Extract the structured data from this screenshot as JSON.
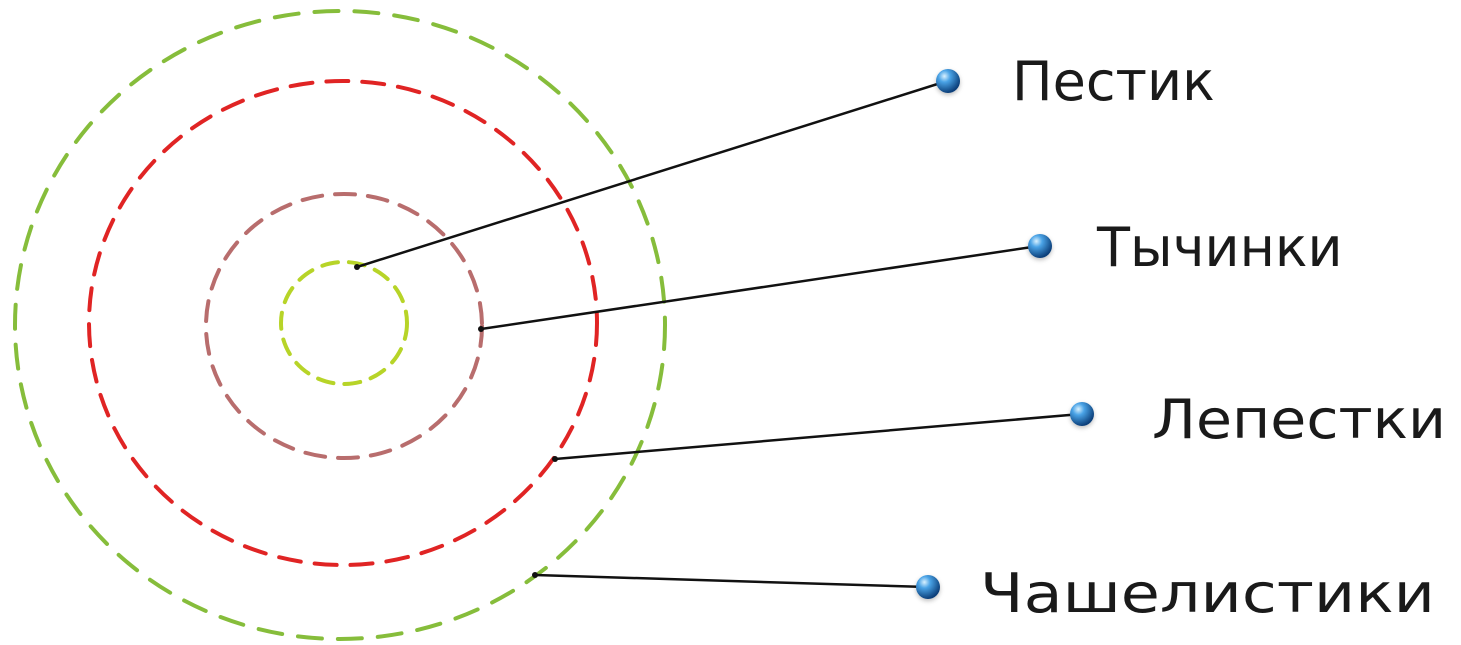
{
  "diagram": {
    "labels": [
      {
        "key": "pistil",
        "text": "Пестик"
      },
      {
        "key": "stamens",
        "text": "Тычинки"
      },
      {
        "key": "petals",
        "text": "Лепестки"
      },
      {
        "key": "sepals",
        "text": "Чашелистики"
      }
    ],
    "colors": {
      "sepals_ring": "#86bd3b",
      "petals_ring": "#e02424",
      "stamens_ring": "#b86d6d",
      "pistil_ring": "#b7d428",
      "leader_line": "#111111",
      "bullet": "#2f7fc8"
    }
  }
}
